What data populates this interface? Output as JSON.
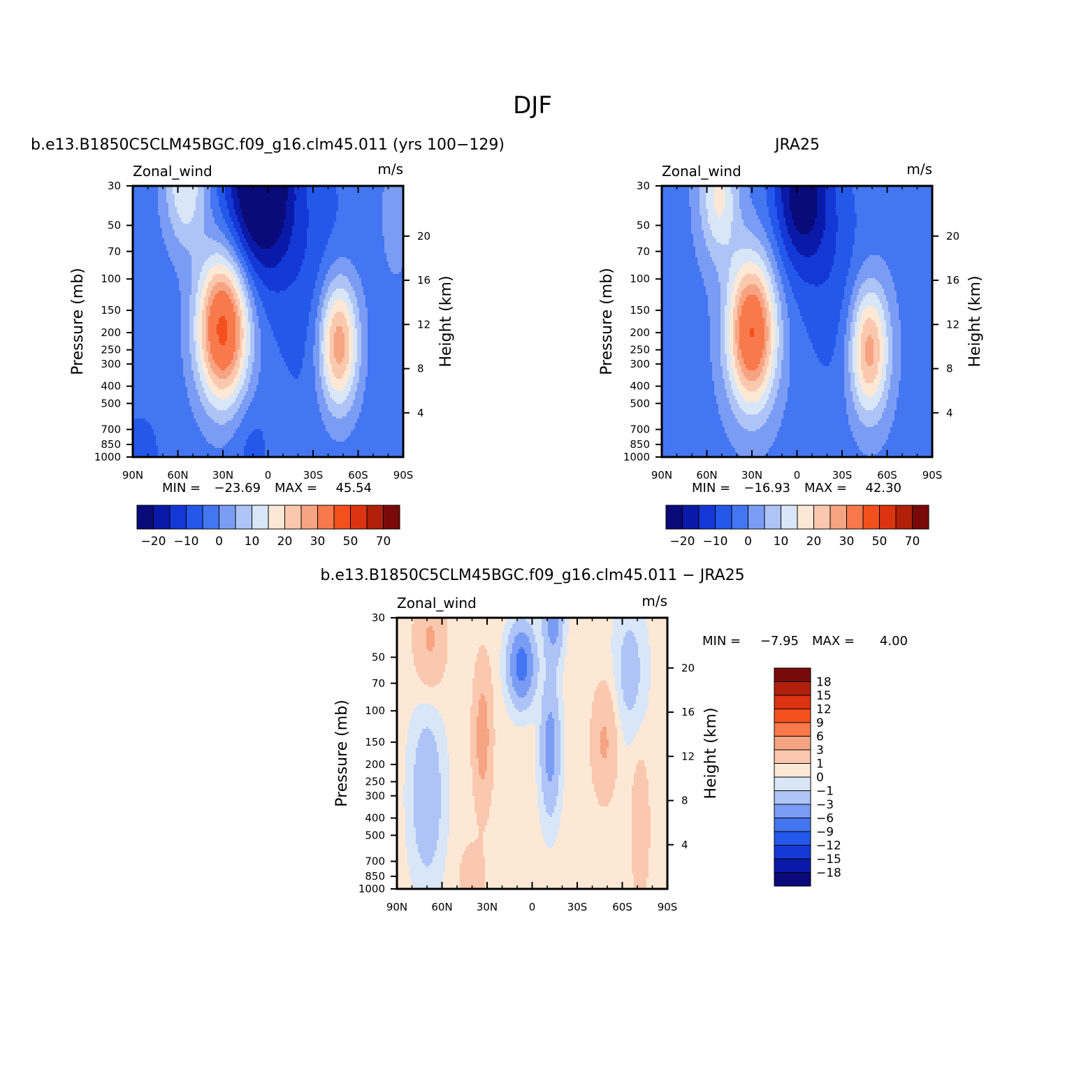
{
  "figure": {
    "title": "DJF",
    "colors": {
      "model_scale": [
        "#0a0a7a",
        "#0a1aa8",
        "#1438d6",
        "#2458ea",
        "#4476f2",
        "#7a9cf4",
        "#aec4f6",
        "#d8e6f8",
        "#fde8d6",
        "#fac8ae",
        "#f6a482",
        "#f87a4c",
        "#f4501e",
        "#dc3410",
        "#b0200a",
        "#7a0a0a"
      ],
      "diff_scale": [
        "#0a0a7a",
        "#0a1aa8",
        "#1438d6",
        "#2458ea",
        "#4476f2",
        "#7a9cf4",
        "#aec4f6",
        "#d8e6f8",
        "#fde8d6",
        "#fac8ae",
        "#f6a482",
        "#f87a4c",
        "#f4501e",
        "#dc3410",
        "#b0200a",
        "#7a0a0a"
      ]
    }
  },
  "chart_data": [
    {
      "type": "contour",
      "panel": "model",
      "title": "b.e13.B1850C5CLM45BGC.f09_g16.clm45.011 (yrs 100-129)",
      "left_label": "Zonal_wind",
      "right_label": "m/s",
      "xlabel": "",
      "ylabel": "Pressure (mb)",
      "y2label": "Height (km)",
      "x_ticks": [
        "90N",
        "60N",
        "30N",
        "0",
        "30S",
        "60S",
        "90S"
      ],
      "y_ticks": [
        "30",
        "50",
        "70",
        "100",
        "150",
        "200",
        "250",
        "300",
        "400",
        "500",
        "700",
        "850",
        "1000"
      ],
      "y2_ticks": [
        "20",
        "16",
        "12",
        "8",
        "4"
      ],
      "xlim": [
        90,
        -90
      ],
      "ylim": [
        1000,
        30
      ],
      "min_label": "MIN =",
      "min_value": "-23.69",
      "max_label": "MAX =",
      "max_value": "45.54",
      "levels": [
        -25,
        -20,
        -15,
        -10,
        -5,
        0,
        5,
        10,
        15,
        20,
        25,
        30,
        40,
        50,
        60,
        70
      ],
      "colorbar_labels": [
        "-20",
        "-10",
        "0",
        "10",
        "20",
        "30",
        "50",
        "70"
      ],
      "features": [
        {
          "kind": "jet",
          "lat": 30,
          "p": 200,
          "peak": 45.54
        },
        {
          "kind": "jet",
          "lat": -47,
          "p": 250,
          "peak": 33
        },
        {
          "kind": "easterly",
          "lat": 5,
          "p": 30,
          "peak": -23.69
        }
      ]
    },
    {
      "type": "contour",
      "panel": "obs",
      "title": "JRA25",
      "left_label": "Zonal_wind",
      "right_label": "m/s",
      "xlabel": "",
      "ylabel": "Pressure (mb)",
      "y2label": "Height (km)",
      "x_ticks": [
        "90N",
        "60N",
        "30N",
        "0",
        "30S",
        "60S",
        "90S"
      ],
      "y_ticks": [
        "30",
        "50",
        "70",
        "100",
        "150",
        "200",
        "250",
        "300",
        "400",
        "500",
        "700",
        "850",
        "1000"
      ],
      "y2_ticks": [
        "20",
        "16",
        "12",
        "8",
        "4"
      ],
      "xlim": [
        90,
        -90
      ],
      "ylim": [
        1000,
        30
      ],
      "min_label": "MIN =",
      "min_value": "-16.93",
      "max_label": "MAX =",
      "max_value": "42.30",
      "levels": [
        -25,
        -20,
        -15,
        -10,
        -5,
        0,
        5,
        10,
        15,
        20,
        25,
        30,
        40,
        50,
        60,
        70
      ],
      "colorbar_labels": [
        "-20",
        "-10",
        "0",
        "10",
        "20",
        "30",
        "50",
        "70"
      ],
      "features": [
        {
          "kind": "jet",
          "lat": 30,
          "p": 200,
          "peak": 42.3
        },
        {
          "kind": "jet",
          "lat": -48,
          "p": 250,
          "peak": 30
        },
        {
          "kind": "easterly",
          "lat": -2,
          "p": 30,
          "peak": -16.93
        }
      ]
    },
    {
      "type": "contour",
      "panel": "difference",
      "title": "b.e13.B1850C5CLM45BGC.f09_g16.clm45.011 - JRA25",
      "left_label": "Zonal_wind",
      "right_label": "m/s",
      "xlabel": "",
      "ylabel": "Pressure (mb)",
      "y2label": "Height (km)",
      "x_ticks": [
        "90N",
        "60N",
        "30N",
        "0",
        "30S",
        "60S",
        "90S"
      ],
      "y_ticks": [
        "30",
        "50",
        "70",
        "100",
        "150",
        "200",
        "250",
        "300",
        "400",
        "500",
        "700",
        "850",
        "1000"
      ],
      "y2_ticks": [
        "20",
        "16",
        "12",
        "8",
        "4"
      ],
      "xlim": [
        90,
        -90
      ],
      "ylim": [
        1000,
        30
      ],
      "min_label": "MIN =",
      "min_value": "-7.95",
      "max_label": "MAX =",
      "max_value": "4.00",
      "levels": [
        -21,
        -18,
        -15,
        -12,
        -9,
        -6,
        -3,
        -1,
        0,
        1,
        3,
        6,
        9,
        12,
        15,
        18
      ],
      "colorbar_labels": [
        "18",
        "15",
        "12",
        "9",
        "6",
        "3",
        "1",
        "0",
        "-1",
        "-3",
        "-6",
        "-9",
        "-12",
        "-15",
        "-18"
      ]
    }
  ]
}
